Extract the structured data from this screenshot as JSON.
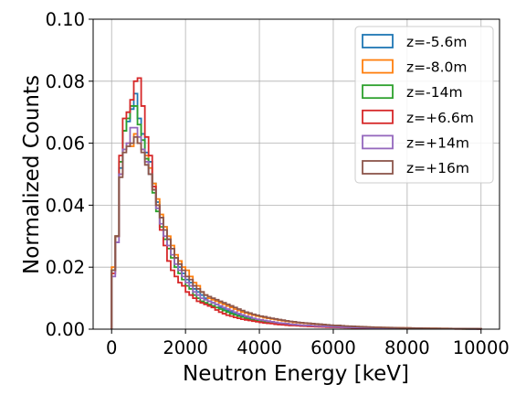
{
  "chart_data": {
    "type": "line",
    "xlabel": "Neutron Energy [keV]",
    "ylabel": "Normalized Counts",
    "xlim": [
      -500,
      10500
    ],
    "ylim": [
      0,
      0.1
    ],
    "x_ticks": [
      "0",
      "2000",
      "4000",
      "6000",
      "8000",
      "10000"
    ],
    "x_tick_values": [
      0,
      2000,
      4000,
      6000,
      8000,
      10000
    ],
    "y_ticks": [
      "0.00",
      "0.02",
      "0.04",
      "0.06",
      "0.08",
      "0.10"
    ],
    "y_tick_values": [
      0,
      0.02,
      0.04,
      0.06,
      0.08,
      0.1
    ],
    "grid": true,
    "legend_position": "top-right",
    "bin_width": 100,
    "bin_start": 0,
    "series": [
      {
        "name": "z=-5.6m",
        "color": "#1f77b4",
        "values": [
          0.019,
          0.03,
          0.052,
          0.064,
          0.067,
          0.071,
          0.076,
          0.068,
          0.063,
          0.057,
          0.054,
          0.047,
          0.041,
          0.036,
          0.033,
          0.029,
          0.026,
          0.023,
          0.02,
          0.018,
          0.016,
          0.015,
          0.013,
          0.012,
          0.011,
          0.01,
          0.009,
          0.0085,
          0.008,
          0.007,
          0.0065,
          0.006,
          0.0055,
          0.005,
          0.0046,
          0.0042,
          0.0039,
          0.0035,
          0.0032,
          0.003,
          0.0028,
          0.0026,
          0.0024,
          0.0022,
          0.002,
          0.0019,
          0.0018,
          0.0016,
          0.0015,
          0.0014,
          0.0013,
          0.0012,
          0.0012,
          0.0011,
          0.001,
          0.00095,
          0.0009,
          0.00085,
          0.0008,
          0.00075,
          0.0007,
          0.00065,
          0.0006,
          0.00058,
          0.00055,
          0.00052,
          0.0005,
          0.00048,
          0.00045,
          0.00043,
          0.0004,
          0.00038,
          0.00036,
          0.00034,
          0.00032,
          0.0003,
          0.00029,
          0.00028,
          0.00026,
          0.00025,
          0.00024,
          0.00022,
          0.00021,
          0.0002,
          0.00019,
          0.00018,
          0.00017,
          0.00016,
          0.00015,
          0.00014,
          0.00013,
          0.00012,
          0.00012,
          0.00011,
          0.0001,
          0.0001,
          9e-05,
          9e-05,
          8e-05,
          8e-05
        ]
      },
      {
        "name": "z=-8.0m",
        "color": "#ff7f0e",
        "values": [
          0.02,
          0.03,
          0.05,
          0.058,
          0.06,
          0.059,
          0.063,
          0.06,
          0.058,
          0.056,
          0.052,
          0.047,
          0.042,
          0.037,
          0.033,
          0.03,
          0.027,
          0.024,
          0.022,
          0.02,
          0.019,
          0.017,
          0.015,
          0.014,
          0.012,
          0.011,
          0.01,
          0.0095,
          0.009,
          0.0085,
          0.008,
          0.0075,
          0.007,
          0.0065,
          0.006,
          0.0055,
          0.0052,
          0.0048,
          0.0045,
          0.0042,
          0.004,
          0.0037,
          0.0035,
          0.0033,
          0.0031,
          0.0029,
          0.0027,
          0.0025,
          0.0024,
          0.0022,
          0.0021,
          0.002,
          0.0019,
          0.0018,
          0.0017,
          0.0016,
          0.0015,
          0.0014,
          0.0013,
          0.0012,
          0.0012,
          0.0011,
          0.001,
          0.00095,
          0.0009,
          0.00085,
          0.0008,
          0.00075,
          0.0007,
          0.00065,
          0.0006,
          0.00058,
          0.00055,
          0.00052,
          0.0005,
          0.00048,
          0.00045,
          0.00043,
          0.0004,
          0.00038,
          0.00036,
          0.00034,
          0.00032,
          0.0003,
          0.00028,
          0.00026,
          0.00025,
          0.00024,
          0.00022,
          0.00021,
          0.0002,
          0.00019,
          0.00018,
          0.00017,
          0.00016,
          0.00015,
          0.00014,
          0.00013,
          0.00012,
          0.00011
        ]
      },
      {
        "name": "z=-14m",
        "color": "#2ca02c",
        "values": [
          0.019,
          0.03,
          0.054,
          0.064,
          0.068,
          0.072,
          0.072,
          0.066,
          0.061,
          0.055,
          0.05,
          0.044,
          0.038,
          0.033,
          0.029,
          0.026,
          0.023,
          0.02,
          0.018,
          0.016,
          0.014,
          0.013,
          0.011,
          0.01,
          0.009,
          0.0085,
          0.008,
          0.0075,
          0.007,
          0.0065,
          0.006,
          0.0055,
          0.005,
          0.0046,
          0.0042,
          0.0039,
          0.0035,
          0.0032,
          0.003,
          0.0028,
          0.0026,
          0.0024,
          0.0022,
          0.002,
          0.0019,
          0.0018,
          0.0016,
          0.0015,
          0.0014,
          0.0013,
          0.0012,
          0.0012,
          0.0011,
          0.001,
          0.00095,
          0.0009,
          0.00085,
          0.0008,
          0.00075,
          0.0007,
          0.00065,
          0.0006,
          0.00058,
          0.00055,
          0.00052,
          0.0005,
          0.00048,
          0.00045,
          0.00043,
          0.0004,
          0.00038,
          0.00036,
          0.00034,
          0.00032,
          0.0003,
          0.00029,
          0.00028,
          0.00026,
          0.00025,
          0.00024,
          0.00022,
          0.00021,
          0.0002,
          0.00019,
          0.00018,
          0.00017,
          0.00016,
          0.00015,
          0.00014,
          0.00013,
          0.00012,
          0.00012,
          0.00011,
          0.0001,
          0.0001,
          9e-05,
          9e-05,
          8e-05,
          8e-05,
          7e-05
        ]
      },
      {
        "name": "z=+6.6m",
        "color": "#d62728",
        "values": [
          0.018,
          0.03,
          0.056,
          0.068,
          0.07,
          0.074,
          0.08,
          0.081,
          0.072,
          0.062,
          0.056,
          0.046,
          0.04,
          0.032,
          0.027,
          0.022,
          0.019,
          0.017,
          0.015,
          0.014,
          0.012,
          0.011,
          0.01,
          0.009,
          0.0085,
          0.008,
          0.0075,
          0.007,
          0.0062,
          0.0055,
          0.005,
          0.0045,
          0.0042,
          0.0038,
          0.0035,
          0.0032,
          0.003,
          0.0028,
          0.0026,
          0.0024,
          0.0022,
          0.002,
          0.0019,
          0.0018,
          0.0016,
          0.0015,
          0.0014,
          0.0013,
          0.0012,
          0.0012,
          0.0011,
          0.001,
          0.00095,
          0.0009,
          0.00085,
          0.0008,
          0.00075,
          0.0007,
          0.00065,
          0.0006,
          0.00058,
          0.00055,
          0.00052,
          0.0005,
          0.00048,
          0.00045,
          0.00043,
          0.0004,
          0.00038,
          0.00036,
          0.00034,
          0.00032,
          0.0003,
          0.00029,
          0.00028,
          0.00026,
          0.00025,
          0.00024,
          0.00022,
          0.00021,
          0.0002,
          0.00019,
          0.00018,
          0.00017,
          0.00016,
          0.00015,
          0.00014,
          0.00013,
          0.00012,
          0.00012,
          0.00011,
          0.0001,
          0.0001,
          9e-05,
          9e-05,
          8e-05,
          8e-05,
          7e-05,
          7e-05,
          6e-05
        ]
      },
      {
        "name": "z=+14m",
        "color": "#9467bd",
        "values": [
          0.017,
          0.028,
          0.05,
          0.058,
          0.06,
          0.065,
          0.065,
          0.062,
          0.058,
          0.054,
          0.05,
          0.045,
          0.039,
          0.034,
          0.03,
          0.027,
          0.024,
          0.021,
          0.019,
          0.017,
          0.015,
          0.014,
          0.012,
          0.011,
          0.01,
          0.0095,
          0.009,
          0.0085,
          0.008,
          0.0075,
          0.007,
          0.0065,
          0.006,
          0.0055,
          0.005,
          0.0046,
          0.0042,
          0.0039,
          0.0035,
          0.0032,
          0.003,
          0.0028,
          0.0026,
          0.0024,
          0.0022,
          0.002,
          0.0019,
          0.0018,
          0.0016,
          0.0015,
          0.0014,
          0.0013,
          0.0012,
          0.0012,
          0.0011,
          0.001,
          0.00095,
          0.0009,
          0.00085,
          0.0008,
          0.00075,
          0.0007,
          0.00065,
          0.0006,
          0.00058,
          0.00055,
          0.00052,
          0.0005,
          0.00048,
          0.00045,
          0.00043,
          0.0004,
          0.00038,
          0.00036,
          0.00034,
          0.00032,
          0.0003,
          0.00029,
          0.00028,
          0.00026,
          0.00025,
          0.00024,
          0.00022,
          0.00021,
          0.0002,
          0.00019,
          0.00018,
          0.00017,
          0.00016,
          0.00015,
          0.00014,
          0.00013,
          0.00012,
          0.00012,
          0.00011,
          0.0001,
          0.0001,
          9e-05,
          9e-05,
          8e-05
        ]
      },
      {
        "name": "z=+16m",
        "color": "#8c564b",
        "values": [
          0.019,
          0.03,
          0.049,
          0.057,
          0.059,
          0.06,
          0.062,
          0.06,
          0.057,
          0.053,
          0.05,
          0.045,
          0.04,
          0.036,
          0.032,
          0.029,
          0.026,
          0.023,
          0.021,
          0.019,
          0.017,
          0.016,
          0.014,
          0.013,
          0.012,
          0.011,
          0.0105,
          0.01,
          0.0095,
          0.009,
          0.0085,
          0.008,
          0.0075,
          0.007,
          0.0065,
          0.006,
          0.0055,
          0.0052,
          0.0048,
          0.0045,
          0.0042,
          0.004,
          0.0037,
          0.0035,
          0.0033,
          0.0031,
          0.0029,
          0.0027,
          0.0025,
          0.0024,
          0.0022,
          0.0021,
          0.002,
          0.0019,
          0.0018,
          0.0017,
          0.0016,
          0.0015,
          0.0014,
          0.0013,
          0.0012,
          0.0012,
          0.0011,
          0.001,
          0.00095,
          0.0009,
          0.00085,
          0.0008,
          0.00075,
          0.0007,
          0.00065,
          0.0006,
          0.00058,
          0.00055,
          0.00052,
          0.0005,
          0.00048,
          0.00045,
          0.00043,
          0.0004,
          0.00038,
          0.00036,
          0.00034,
          0.00032,
          0.0003,
          0.00028,
          0.00026,
          0.00025,
          0.00024,
          0.00022,
          0.00021,
          0.0002,
          0.00019,
          0.00018,
          0.00017,
          0.00016,
          0.00015,
          0.00014,
          0.00013,
          0.00012
        ]
      }
    ]
  }
}
